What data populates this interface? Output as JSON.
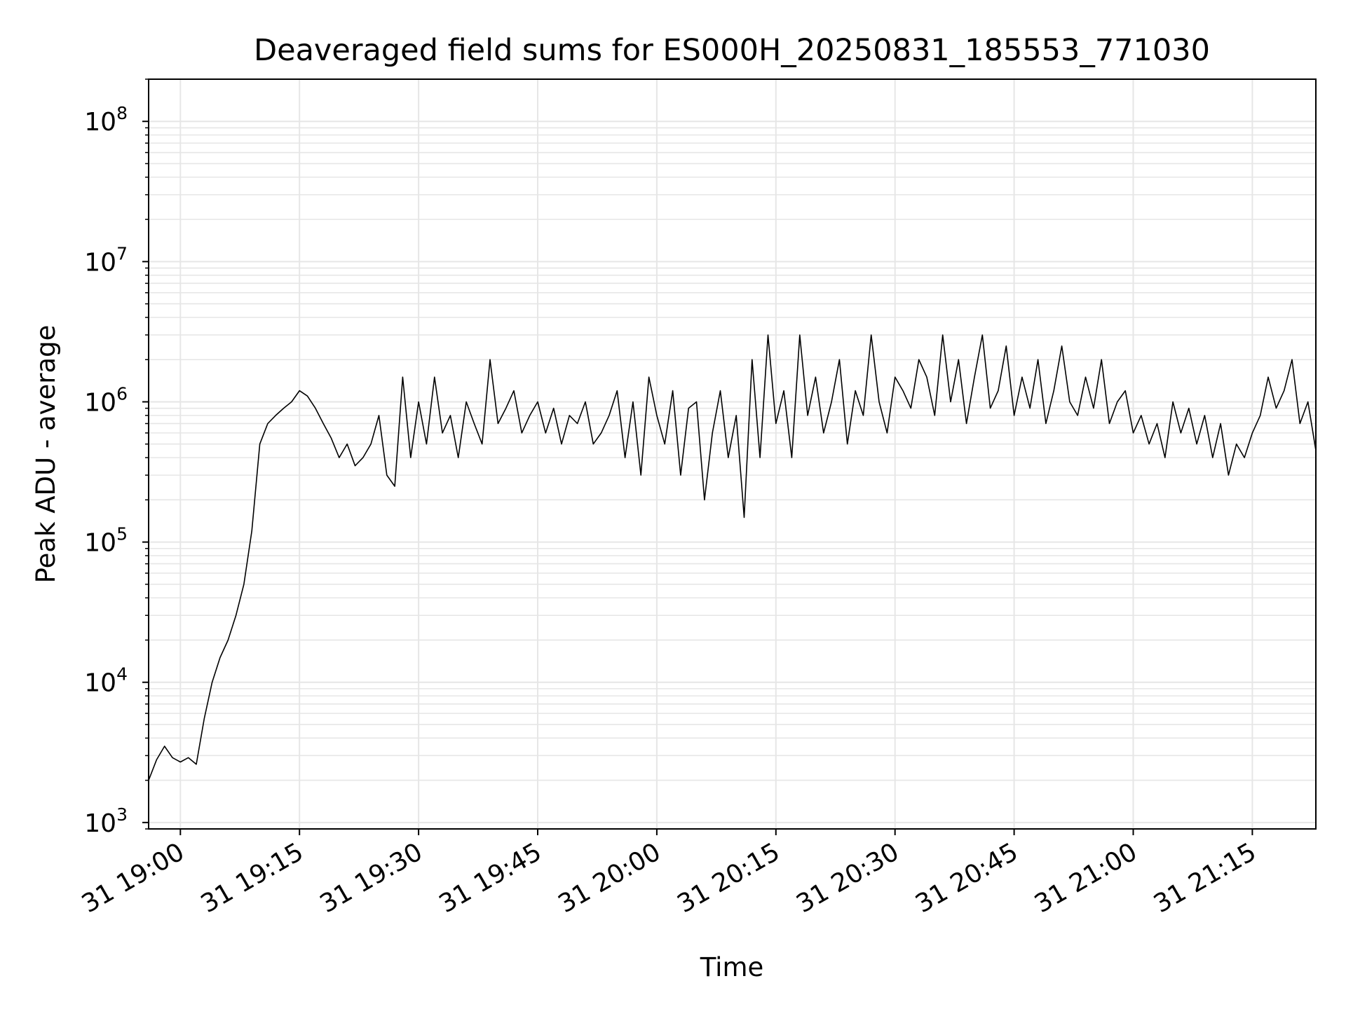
{
  "chart_data": {
    "type": "line",
    "title": "Deaveraged field sums for ES000H_20250831_185553_771030",
    "xlabel": "Time",
    "ylabel": "Peak ADU - average",
    "y_scale": "log",
    "ylim": [
      900,
      200000000
    ],
    "xlim": [
      "2025-08-31 18:56",
      "2025-08-31 21:23"
    ],
    "x_tick_labels": [
      "31 19:00",
      "31 19:15",
      "31 19:30",
      "31 19:45",
      "31 20:00",
      "31 20:15",
      "31 20:30",
      "31 20:45",
      "31 21:00",
      "31 21:15"
    ],
    "x_tick_times": [
      "19:00",
      "19:15",
      "19:30",
      "19:45",
      "20:00",
      "20:15",
      "20:30",
      "20:45",
      "21:00",
      "21:15"
    ],
    "y_ticks": [
      {
        "base": "10",
        "exp": "3",
        "value": 1000
      },
      {
        "base": "10",
        "exp": "4",
        "value": 10000
      },
      {
        "base": "10",
        "exp": "5",
        "value": 100000
      },
      {
        "base": "10",
        "exp": "6",
        "value": 1000000
      },
      {
        "base": "10",
        "exp": "7",
        "value": 10000000
      },
      {
        "base": "10",
        "exp": "8",
        "value": 100000000
      }
    ],
    "grid": true,
    "line_color": "#000000",
    "grid_color": "#e6e6e6",
    "series": [
      {
        "x": [
          "18:56",
          "18:57",
          "18:58",
          "18:59",
          "19:00",
          "19:01",
          "19:02",
          "19:03",
          "19:04",
          "19:05",
          "19:06",
          "19:07",
          "19:08",
          "19:09",
          "19:10",
          "19:11",
          "19:12",
          "19:13",
          "19:14",
          "19:15",
          "19:16",
          "19:17",
          "19:18",
          "19:19",
          "19:20",
          "19:21",
          "19:22",
          "19:23",
          "19:24",
          "19:25",
          "19:26",
          "19:27",
          "19:28",
          "19:29",
          "19:30",
          "19:31",
          "19:32",
          "19:33",
          "19:34",
          "19:35",
          "19:36",
          "19:37",
          "19:38",
          "19:39",
          "19:40",
          "19:41",
          "19:42",
          "19:43",
          "19:44",
          "19:45",
          "19:46",
          "19:47",
          "19:48",
          "19:49",
          "19:50",
          "19:51",
          "19:52",
          "19:53",
          "19:54",
          "19:55",
          "19:56",
          "19:57",
          "19:58",
          "19:59",
          "20:00",
          "20:01",
          "20:02",
          "20:03",
          "20:04",
          "20:05",
          "20:06",
          "20:07",
          "20:08",
          "20:09",
          "20:10",
          "20:11",
          "20:12",
          "20:13",
          "20:14",
          "20:15",
          "20:16",
          "20:17",
          "20:18",
          "20:19",
          "20:20",
          "20:21",
          "20:22",
          "20:23",
          "20:24",
          "20:25",
          "20:26",
          "20:27",
          "20:28",
          "20:29",
          "20:30",
          "20:31",
          "20:32",
          "20:33",
          "20:34",
          "20:35",
          "20:36",
          "20:37",
          "20:38",
          "20:39",
          "20:40",
          "20:41",
          "20:42",
          "20:43",
          "20:44",
          "20:45",
          "20:46",
          "20:47",
          "20:48",
          "20:49",
          "20:50",
          "20:51",
          "20:52",
          "20:53",
          "20:54",
          "20:55",
          "20:56",
          "20:57",
          "20:58",
          "20:59",
          "21:00",
          "21:01",
          "21:02",
          "21:03",
          "21:04",
          "21:05",
          "21:06",
          "21:07",
          "21:08",
          "21:09",
          "21:10",
          "21:11",
          "21:12",
          "21:13",
          "21:14",
          "21:15",
          "21:16",
          "21:17",
          "21:18",
          "21:19",
          "21:20",
          "21:21",
          "21:22",
          "21:23"
        ],
        "y": [
          2000,
          2800,
          3500,
          2900,
          2700,
          2900,
          2600,
          5500,
          10000,
          15000,
          20000,
          30000,
          50000,
          120000,
          500000,
          700000,
          800000,
          900000,
          1000000,
          1200000,
          1100000,
          900000,
          700000,
          550000,
          400000,
          500000,
          350000,
          400000,
          500000,
          800000,
          300000,
          250000,
          1500000,
          400000,
          1000000,
          500000,
          1500000,
          600000,
          800000,
          400000,
          1000000,
          700000,
          500000,
          2000000,
          700000,
          900000,
          1200000,
          600000,
          800000,
          1000000,
          600000,
          900000,
          500000,
          800000,
          700000,
          1000000,
          500000,
          600000,
          800000,
          1200000,
          400000,
          1000000,
          300000,
          1500000,
          800000,
          500000,
          1200000,
          300000,
          900000,
          1000000,
          200000,
          600000,
          1200000,
          400000,
          800000,
          150000,
          2000000,
          400000,
          3000000,
          700000,
          1200000,
          400000,
          3000000,
          800000,
          1500000,
          600000,
          1000000,
          2000000,
          500000,
          1200000,
          800000,
          3000000,
          1000000,
          600000,
          1500000,
          1200000,
          900000,
          2000000,
          1500000,
          800000,
          3000000,
          1000000,
          2000000,
          700000,
          1500000,
          3000000,
          900000,
          1200000,
          2500000,
          800000,
          1500000,
          900000,
          2000000,
          700000,
          1200000,
          2500000,
          1000000,
          800000,
          1500000,
          900000,
          2000000,
          700000,
          1000000,
          1200000,
          600000,
          800000,
          500000,
          700000,
          400000,
          1000000,
          600000,
          900000,
          500000,
          800000,
          400000,
          700000,
          300000,
          500000,
          400000,
          600000,
          800000,
          1500000,
          900000,
          1200000,
          2000000,
          700000,
          1000000,
          450000
        ]
      }
    ]
  }
}
